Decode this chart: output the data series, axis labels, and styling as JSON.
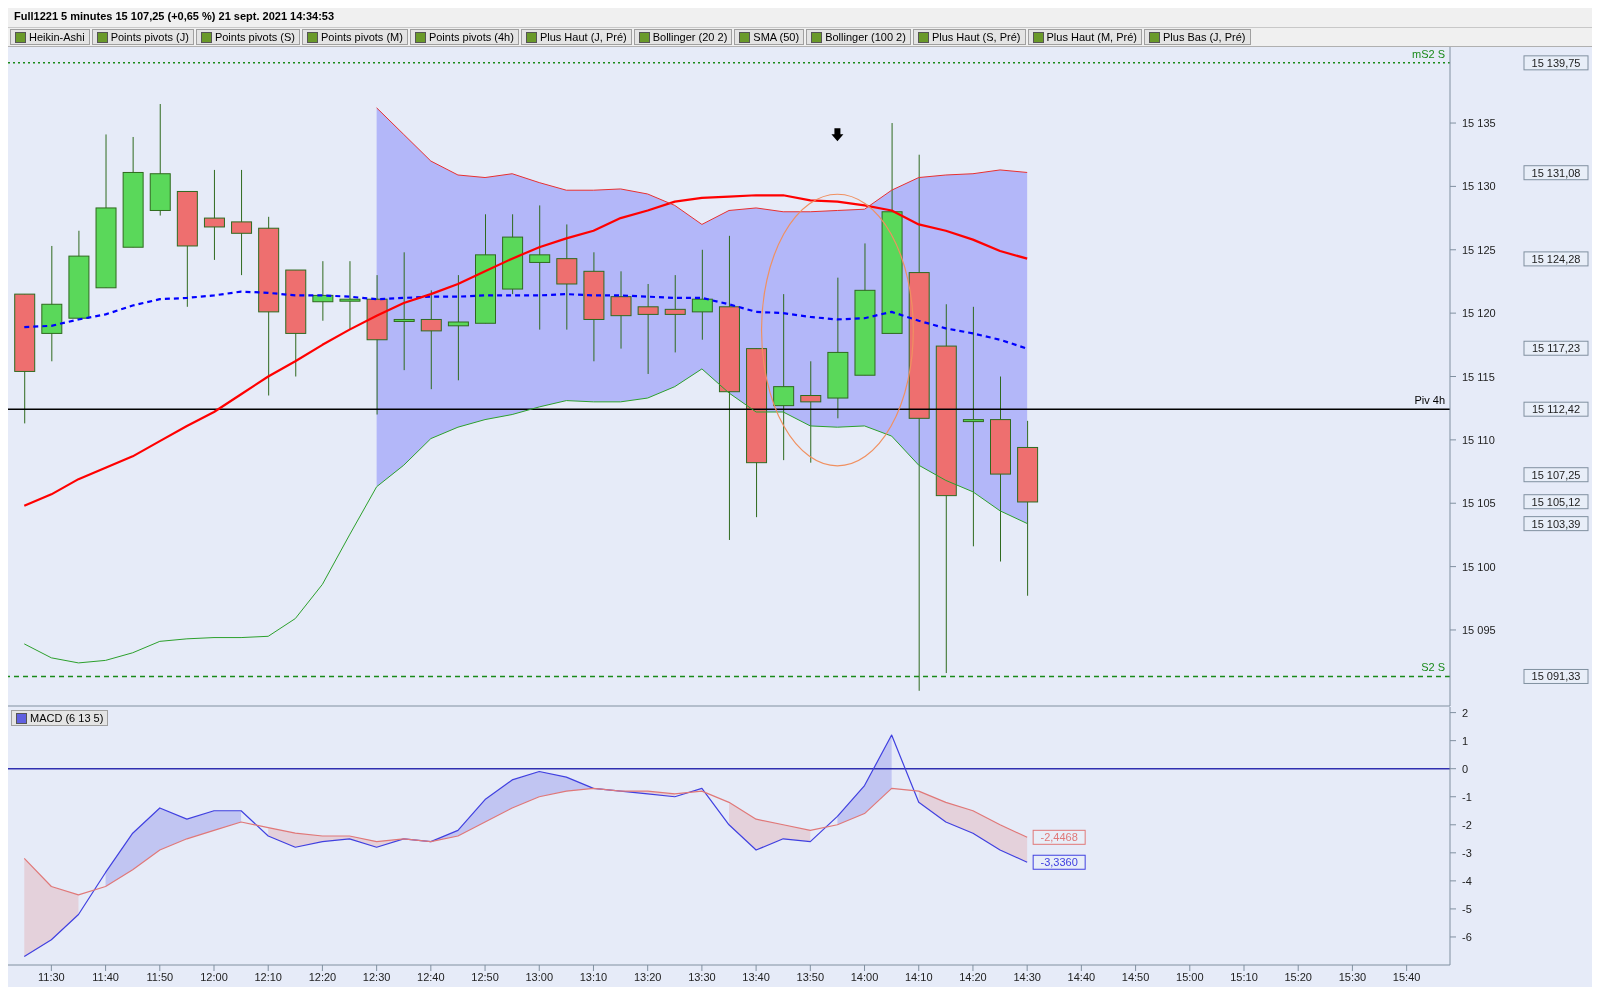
{
  "chart_data": [
    {
      "type": "candlestick",
      "title": "Full1221 5 minutes 15 107,25 (+0,65 %) 21 sept. 2021 14:34:53",
      "x": [
        "2021-09-21T11:25",
        "2021-09-21T11:30",
        "2021-09-21T11:35",
        "2021-09-21T11:40",
        "2021-09-21T11:45",
        "2021-09-21T11:50",
        "2021-09-21T11:55",
        "2021-09-21T12:00",
        "2021-09-21T12:05",
        "2021-09-21T12:10",
        "2021-09-21T12:15",
        "2021-09-21T12:20",
        "2021-09-21T12:25",
        "2021-09-21T12:30",
        "2021-09-21T12:35",
        "2021-09-21T12:40",
        "2021-09-21T12:45",
        "2021-09-21T12:50",
        "2021-09-21T12:55",
        "2021-09-21T13:00",
        "2021-09-21T13:05",
        "2021-09-21T13:10",
        "2021-09-21T13:15",
        "2021-09-21T13:20",
        "2021-09-21T13:25",
        "2021-09-21T13:30",
        "2021-09-21T13:35",
        "2021-09-21T13:40",
        "2021-09-21T13:45",
        "2021-09-21T13:50",
        "2021-09-21T13:55",
        "2021-09-21T14:00",
        "2021-09-21T14:05",
        "2021-09-21T14:10",
        "2021-09-21T14:15",
        "2021-09-21T14:20",
        "2021-09-21T14:25",
        "2021-09-21T14:30"
      ],
      "ohlc": [
        [
          15121.5,
          15121.5,
          15111.3,
          15115.4
        ],
        [
          15118.4,
          15125.3,
          15116.2,
          15120.7
        ],
        [
          15119.6,
          15126.5,
          15119.6,
          15124.5
        ],
        [
          15122.0,
          15134.1,
          15122.0,
          15128.3
        ],
        [
          15125.2,
          15133.9,
          15125.2,
          15131.1
        ],
        [
          15128.1,
          15136.5,
          15127.7,
          15131.0
        ],
        [
          15129.6,
          15129.6,
          15120.5,
          15125.3
        ],
        [
          15127.5,
          15131.3,
          15124.2,
          15126.8
        ],
        [
          15127.2,
          15131.3,
          15123.0,
          15126.3
        ],
        [
          15126.7,
          15127.6,
          15113.5,
          15120.1
        ],
        [
          15123.4,
          15123.4,
          15115.0,
          15118.4
        ],
        [
          15120.9,
          15124.1,
          15119.4,
          15121.4
        ],
        [
          15121.1,
          15124.1,
          15118.7,
          15121.1
        ],
        [
          15121.1,
          15123.0,
          15112.0,
          15117.9
        ],
        [
          15119.5,
          15124.8,
          15115.5,
          15119.5
        ],
        [
          15119.5,
          15121.8,
          15114.0,
          15118.6
        ],
        [
          15119.0,
          15123.0,
          15114.7,
          15119.3
        ],
        [
          15119.2,
          15127.8,
          15119.2,
          15124.6
        ],
        [
          15121.9,
          15127.8,
          15121.5,
          15126.0
        ],
        [
          15124.0,
          15128.5,
          15118.7,
          15124.6
        ],
        [
          15124.3,
          15127.0,
          15118.7,
          15122.3
        ],
        [
          15123.3,
          15124.8,
          15116.2,
          15119.5
        ],
        [
          15121.3,
          15123.3,
          15117.2,
          15119.8
        ],
        [
          15120.5,
          15122.3,
          15115.2,
          15119.9
        ],
        [
          15120.3,
          15123.0,
          15116.9,
          15119.9
        ],
        [
          15120.1,
          15125.0,
          15117.9,
          15121.1
        ],
        [
          15120.5,
          15126.1,
          15102.1,
          15113.8
        ],
        [
          15117.2,
          15117.2,
          15103.9,
          15108.2
        ],
        [
          15112.7,
          15121.5,
          15108.4,
          15114.2
        ],
        [
          15113.5,
          15116.2,
          15108.2,
          15113.0
        ],
        [
          15113.3,
          15122.8,
          15111.7,
          15116.9
        ],
        [
          15115.1,
          15125.5,
          15115.1,
          15121.8
        ],
        [
          15118.4,
          15135.0,
          15118.4,
          15128.0
        ],
        [
          15123.2,
          15132.5,
          15090.2,
          15111.7
        ],
        [
          15117.4,
          15120.7,
          15091.6,
          15105.6
        ],
        [
          15111.6,
          15120.5,
          15101.6,
          15111.6
        ],
        [
          15111.6,
          15115.0,
          15100.4,
          15107.3
        ],
        [
          15109.4,
          15111.5,
          15097.7,
          15105.1
        ]
      ],
      "colors": [
        "#ee6f6f",
        "#5ad85a",
        "#5ad85a",
        "#5ad85a",
        "#5ad85a",
        "#5ad85a",
        "#ee6f6f",
        "#ee6f6f",
        "#ee6f6f",
        "#ee6f6f",
        "#ee6f6f",
        "#5ad85a",
        "#5ad85a",
        "#ee6f6f",
        "#5ad85a",
        "#ee6f6f",
        "#5ad85a",
        "#5ad85a",
        "#5ad85a",
        "#5ad85a",
        "#ee6f6f",
        "#ee6f6f",
        "#ee6f6f",
        "#ee6f6f",
        "#ee6f6f",
        "#5ad85a",
        "#ee6f6f",
        "#ee6f6f",
        "#5ad85a",
        "#ee6f6f",
        "#5ad85a",
        "#5ad85a",
        "#5ad85a",
        "#ee6f6f",
        "#ee6f6f",
        "#5ad85a",
        "#ee6f6f",
        "#ee6f6f"
      ],
      "series": [
        {
          "type": "line",
          "color": "#0000ff",
          "line_style": "dashed",
          "values": [
            15118.9,
            15119.0,
            15119.5,
            15119.9,
            15120.6,
            15121.1,
            15121.2,
            15121.4,
            15121.7,
            15121.6,
            15121.4,
            15121.4,
            15121.3,
            15121.1,
            15121.2,
            15121.3,
            15121.3,
            15121.4,
            15121.4,
            15121.4,
            15121.5,
            15121.4,
            15121.4,
            15121.3,
            15121.2,
            15121.2,
            15120.7,
            15120.1,
            15120.0,
            15119.7,
            15119.5,
            15119.6,
            15120.1,
            15119.4,
            15118.8,
            15118.4,
            15117.9,
            15117.2
          ],
          "lower": [
            null,
            null,
            null,
            null,
            null,
            null,
            null,
            null,
            null,
            null,
            null,
            null,
            null,
            15106.3,
            15108.0,
            15110.1,
            15111.0,
            15111.6,
            15112.0,
            15112.6,
            15113.1,
            15113.0,
            15113.0,
            15113.3,
            15114.2,
            15115.6,
            15113.7,
            15112.2,
            15112.2,
            15111.1,
            15111.0,
            15111.1,
            15110.3,
            15108.0,
            15106.8,
            15105.9,
            15104.4,
            15103.4
          ],
          "upper": [
            null,
            null,
            null,
            null,
            null,
            null,
            null,
            null,
            null,
            null,
            null,
            null,
            null,
            15136.2,
            15134.1,
            15132.0,
            15130.9,
            15130.7,
            15131.0,
            15130.3,
            15129.7,
            15129.7,
            15129.8,
            15129.4,
            15128.5,
            15127.0,
            15128.1,
            15128.3,
            15128.0,
            15128.0,
            15128.1,
            15128.2,
            15129.7,
            15130.7,
            15130.9,
            15131.0,
            15131.3,
            15131.1
          ]
        },
        {
          "type": "line",
          "color": "#ff0000",
          "line_style": "solid",
          "values": [
            15104.8,
            15105.7,
            15106.9,
            15107.8,
            15108.7,
            15109.9,
            15111.1,
            15112.2,
            15113.6,
            15115.0,
            15116.2,
            15117.5,
            15118.7,
            15119.8,
            15120.8,
            15121.5,
            15122.3,
            15123.3,
            15124.3,
            15125.2,
            15125.9,
            15126.5,
            15127.5,
            15128.1,
            15128.8,
            15129.1,
            15129.2,
            15129.3,
            15129.3,
            15128.9,
            15128.8,
            15128.5,
            15128.1,
            15127.0,
            15126.5,
            15125.8,
            15124.9,
            15124.3
          ]
        },
        {
          "type": "line",
          "color": "#2ca02c",
          "line_style": "solid",
          "values": [
            15093.9,
            15092.8,
            15092.4,
            15092.6,
            15093.2,
            15094.1,
            15094.3,
            15094.4,
            15094.4,
            15094.5,
            15095.9,
            15098.6,
            15102.5,
            15106.3,
            15108.0,
            15110.1,
            15111.0,
            15111.6,
            15112.0,
            15112.6,
            15113.1,
            15113.0,
            15113.0,
            15113.3,
            15114.2,
            15115.6,
            15113.7,
            15112.2,
            15112.2,
            15111.1,
            15111.0,
            15111.1,
            15110.3,
            15108.0,
            15106.8,
            15105.9,
            15104.4,
            15103.4
          ]
        },
        {
          "type": "line",
          "color": "#e83030",
          "line_style": "solid",
          "values": [
            null,
            null,
            null,
            null,
            null,
            null,
            null,
            null,
            null,
            null,
            null,
            null,
            null,
            15136.2,
            15134.1,
            15132.0,
            15130.9,
            15130.7,
            15131.0,
            15130.3,
            15129.7,
            15129.7,
            15129.8,
            15129.4,
            15128.5,
            15127.0,
            15128.1,
            15128.3,
            15128.0,
            15128.0,
            15128.1,
            15128.2,
            15129.7,
            15130.7,
            15130.9,
            15131.0,
            15131.3,
            15131.1
          ]
        }
      ],
      "xlim": [
        "2021-09-21T11:22",
        "2021-09-21T15:48"
      ],
      "ylim": [
        15089,
        15141
      ],
      "yticks": [
        {
          "value": 15095,
          "label": "15 095"
        },
        {
          "value": 15100,
          "label": "15 100"
        },
        {
          "value": 15105,
          "label": "15 105"
        },
        {
          "value": 15110,
          "label": "15 110"
        },
        {
          "value": 15115,
          "label": "15 115"
        },
        {
          "value": 15120,
          "label": "15 120"
        },
        {
          "value": 15125,
          "label": "15 125"
        },
        {
          "value": 15130,
          "label": "15 130"
        },
        {
          "value": 15135,
          "label": "15 135"
        }
      ],
      "y2lim": [
        15089,
        15141
      ],
      "y2ticks": [
        {
          "value": 15139.75,
          "label": "15 139,75"
        },
        {
          "value": 15131.08,
          "label": "15 131,08"
        },
        {
          "value": 15124.28,
          "label": "15 124,28"
        },
        {
          "value": 15117.23,
          "label": "15 117,23"
        },
        {
          "value": 15112.42,
          "label": "15 112,42"
        },
        {
          "value": 15107.25,
          "label": "15 107,25"
        },
        {
          "value": 15105.12,
          "label": "15 105,12"
        },
        {
          "value": 15103.39,
          "label": "15 103,39"
        },
        {
          "value": 15091.33,
          "label": "15 091,33"
        }
      ],
      "tick_labels": "y",
      "ref_lines": [
        {
          "axis": "y",
          "value": 15112.42,
          "label": "Piv 4h",
          "color": "#000000",
          "line_style": "solid"
        },
        {
          "axis": "y",
          "value": 15091.33,
          "label": "S2 S",
          "color": "#1a8a1a",
          "line_style": "dashed"
        },
        {
          "axis": "y",
          "value": 15139.75,
          "label": "mS2 S",
          "color": "#1a8a1a",
          "line_style": "dotted"
        }
      ],
      "annotations": [
        "Heikin-Ashi",
        "Points pivots (J)",
        "Points pivots (S)",
        "Points pivots (M)",
        "Points pivots (4h)",
        "Plus Haut (J, Pré)",
        "Bollinger (20 2)",
        "SMA (50)",
        "Bollinger (100 2)",
        "Plus Haut (S, Pré)",
        "Plus Haut (M, Pré)",
        "Plus Bas (J, Pré)"
      ]
    },
    {
      "type": "line",
      "title": "MACD (6 13 5)",
      "x": [
        "2021-09-21T11:25",
        "2021-09-21T11:30",
        "2021-09-21T11:35",
        "2021-09-21T11:40",
        "2021-09-21T11:45",
        "2021-09-21T11:50",
        "2021-09-21T11:55",
        "2021-09-21T12:00",
        "2021-09-21T12:05",
        "2021-09-21T12:10",
        "2021-09-21T12:15",
        "2021-09-21T12:20",
        "2021-09-21T12:25",
        "2021-09-21T12:30",
        "2021-09-21T12:35",
        "2021-09-21T12:40",
        "2021-09-21T12:45",
        "2021-09-21T12:50",
        "2021-09-21T12:55",
        "2021-09-21T13:00",
        "2021-09-21T13:05",
        "2021-09-21T13:10",
        "2021-09-21T13:15",
        "2021-09-21T13:20",
        "2021-09-21T13:25",
        "2021-09-21T13:30",
        "2021-09-21T13:35",
        "2021-09-21T13:40",
        "2021-09-21T13:45",
        "2021-09-21T13:50",
        "2021-09-21T13:55",
        "2021-09-21T14:00",
        "2021-09-21T14:05",
        "2021-09-21T14:10",
        "2021-09-21T14:15",
        "2021-09-21T14:20",
        "2021-09-21T14:25",
        "2021-09-21T14:30"
      ],
      "series": [
        {
          "color": "#4040e0",
          "values": [
            -6.7,
            -6.1,
            -5.2,
            -3.7,
            -2.3,
            -1.4,
            -1.8,
            -1.5,
            -1.5,
            -2.4,
            -2.8,
            -2.6,
            -2.5,
            -2.8,
            -2.5,
            -2.6,
            -2.2,
            -1.1,
            -0.4,
            -0.1,
            -0.3,
            -0.7,
            -0.8,
            -0.9,
            -1.0,
            -0.7,
            -2.0,
            -2.9,
            -2.5,
            -2.6,
            -1.7,
            -0.6,
            1.2,
            -1.2,
            -1.9,
            -2.3,
            -2.9,
            -3.336
          ],
          "value_labels": [
            null,
            null,
            null,
            null,
            null,
            null,
            null,
            null,
            null,
            null,
            null,
            null,
            null,
            null,
            null,
            null,
            null,
            null,
            null,
            null,
            null,
            null,
            null,
            null,
            null,
            null,
            null,
            null,
            null,
            null,
            null,
            null,
            null,
            null,
            null,
            null,
            null,
            "-3,3360"
          ],
          "lower": [
            null,
            null,
            null,
            -4.2,
            -3.6,
            -2.9,
            -2.5,
            -2.2,
            -1.9,
            null,
            null,
            null,
            null,
            null,
            -2.5,
            -2.6,
            -2.4,
            -1.9,
            -1.4,
            -1.0,
            -0.8,
            -0.7,
            -0.8,
            null,
            null,
            null,
            null,
            null,
            null,
            null,
            -2.0,
            -1.6,
            -0.7,
            null,
            null,
            null,
            null,
            null
          ],
          "upper": [
            null,
            null,
            null,
            -3.7,
            -2.3,
            -1.4,
            -1.8,
            -1.5,
            -1.5,
            null,
            null,
            null,
            null,
            null,
            -2.5,
            -2.6,
            -2.2,
            -1.1,
            -0.4,
            -0.1,
            -0.3,
            -0.7,
            -0.8,
            null,
            null,
            null,
            null,
            null,
            null,
            null,
            -1.7,
            -0.6,
            1.2,
            null,
            null,
            null,
            null,
            null
          ]
        },
        {
          "color": "#e07878",
          "values": [
            -3.2,
            -4.2,
            -4.5,
            -4.2,
            -3.6,
            -2.9,
            -2.5,
            -2.2,
            -1.9,
            -2.1,
            -2.3,
            -2.4,
            -2.4,
            -2.6,
            -2.5,
            -2.6,
            -2.4,
            -1.9,
            -1.4,
            -1.0,
            -0.8,
            -0.7,
            -0.8,
            -0.8,
            -0.9,
            -0.8,
            -1.2,
            -1.8,
            -2.0,
            -2.2,
            -2.0,
            -1.6,
            -0.7,
            -0.8,
            -1.2,
            -1.5,
            -2.0,
            -2.4468
          ],
          "value_labels": [
            null,
            null,
            null,
            null,
            null,
            null,
            null,
            null,
            null,
            null,
            null,
            null,
            null,
            null,
            null,
            null,
            null,
            null,
            null,
            null,
            null,
            null,
            null,
            null,
            null,
            null,
            null,
            null,
            null,
            null,
            null,
            null,
            null,
            null,
            null,
            null,
            null,
            "-2,4468"
          ],
          "lower": [
            -6.7,
            -6.1,
            -5.2,
            null,
            null,
            null,
            null,
            null,
            null,
            -2.4,
            -2.8,
            -2.6,
            -2.5,
            -2.8,
            -2.5,
            -2.6,
            null,
            null,
            null,
            null,
            null,
            -0.7,
            -0.8,
            -0.9,
            -1.0,
            null,
            -2.0,
            -2.9,
            -2.5,
            -2.6,
            null,
            null,
            null,
            -1.2,
            -1.9,
            -2.3,
            -2.9,
            -3.336
          ],
          "upper": [
            -3.2,
            -4.2,
            -4.5,
            null,
            null,
            null,
            null,
            null,
            null,
            -2.1,
            -2.3,
            -2.4,
            -2.4,
            -2.6,
            -2.5,
            -2.6,
            null,
            null,
            null,
            null,
            null,
            -0.7,
            -0.8,
            -0.8,
            -0.9,
            null,
            -1.2,
            -1.8,
            -2.0,
            -2.2,
            null,
            null,
            null,
            -0.8,
            -1.2,
            -1.5,
            -2.0,
            -2.4468
          ]
        }
      ],
      "xlim": [
        "2021-09-21T11:22",
        "2021-09-21T15:48"
      ],
      "xticks": [
        {
          "value": "2021-09-21T11:30",
          "label": "11:30"
        },
        {
          "value": "2021-09-21T11:40",
          "label": "11:40"
        },
        {
          "value": "2021-09-21T11:50",
          "label": "11:50"
        },
        {
          "value": "2021-09-21T12:00",
          "label": "12:00"
        },
        {
          "value": "2021-09-21T12:10",
          "label": "12:10"
        },
        {
          "value": "2021-09-21T12:20",
          "label": "12:20"
        },
        {
          "value": "2021-09-21T12:30",
          "label": "12:30"
        },
        {
          "value": "2021-09-21T12:40",
          "label": "12:40"
        },
        {
          "value": "2021-09-21T12:50",
          "label": "12:50"
        },
        {
          "value": "2021-09-21T13:00",
          "label": "13:00"
        },
        {
          "value": "2021-09-21T13:10",
          "label": "13:10"
        },
        {
          "value": "2021-09-21T13:20",
          "label": "13:20"
        },
        {
          "value": "2021-09-21T13:30",
          "label": "13:30"
        },
        {
          "value": "2021-09-21T13:40",
          "label": "13:40"
        },
        {
          "value": "2021-09-21T13:50",
          "label": "13:50"
        },
        {
          "value": "2021-09-21T14:00",
          "label": "14:00"
        },
        {
          "value": "2021-09-21T14:10",
          "label": "14:10"
        },
        {
          "value": "2021-09-21T14:20",
          "label": "14:20"
        },
        {
          "value": "2021-09-21T14:30",
          "label": "14:30"
        },
        {
          "value": "2021-09-21T14:40",
          "label": "14:40"
        },
        {
          "value": "2021-09-21T14:50",
          "label": "14:50"
        },
        {
          "value": "2021-09-21T15:00",
          "label": "15:00"
        },
        {
          "value": "2021-09-21T15:10",
          "label": "15:10"
        },
        {
          "value": "2021-09-21T15:20",
          "label": "15:20"
        },
        {
          "value": "2021-09-21T15:30",
          "label": "15:30"
        },
        {
          "value": "2021-09-21T15:40",
          "label": "15:40"
        }
      ],
      "ylim": [
        -7,
        2.2
      ],
      "yticks": [
        2,
        1,
        0,
        -1,
        -2,
        -3,
        -4,
        -5,
        -6
      ],
      "ref_lines": [
        {
          "axis": "y",
          "value": 0,
          "color": "#3030b0",
          "line_style": "solid"
        }
      ]
    }
  ]
}
